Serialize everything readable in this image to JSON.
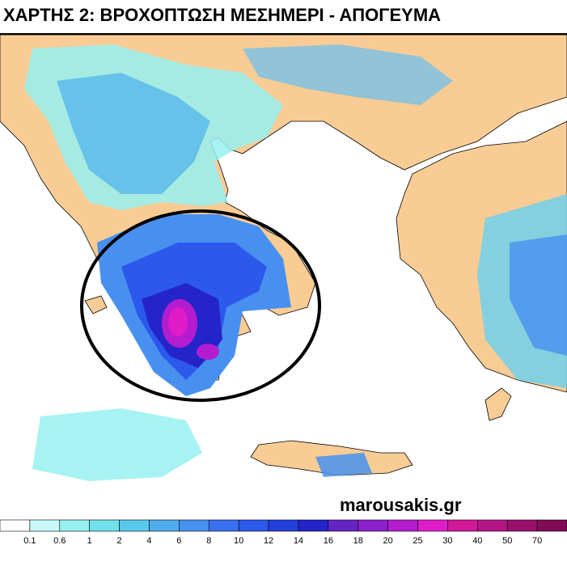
{
  "header": {
    "title": "ΧΑΡΤΗΣ 2: ΒΡΟΧΟΠΤΩΣΗ ΜΕΣΗΜΕΡΙ - ΑΠΟΓΕΥΜΑ"
  },
  "watermark": "marousakis.gr",
  "legend": {
    "labels": [
      0.1,
      0.6,
      1,
      2,
      4,
      6,
      8,
      10,
      12,
      14,
      16,
      18,
      20,
      25,
      30,
      40,
      50,
      70
    ],
    "colors": [
      "#ffffff",
      "#c8f8f8",
      "#98f0f0",
      "#70e0ec",
      "#58c8ec",
      "#50acec",
      "#4890f0",
      "#3870f0",
      "#2c58ec",
      "#2440dc",
      "#2424c8",
      "#6424c4",
      "#8c20cc",
      "#b41cd0",
      "#e01cc8",
      "#d01898",
      "#b41484",
      "#98106c",
      "#800c58"
    ]
  }
}
